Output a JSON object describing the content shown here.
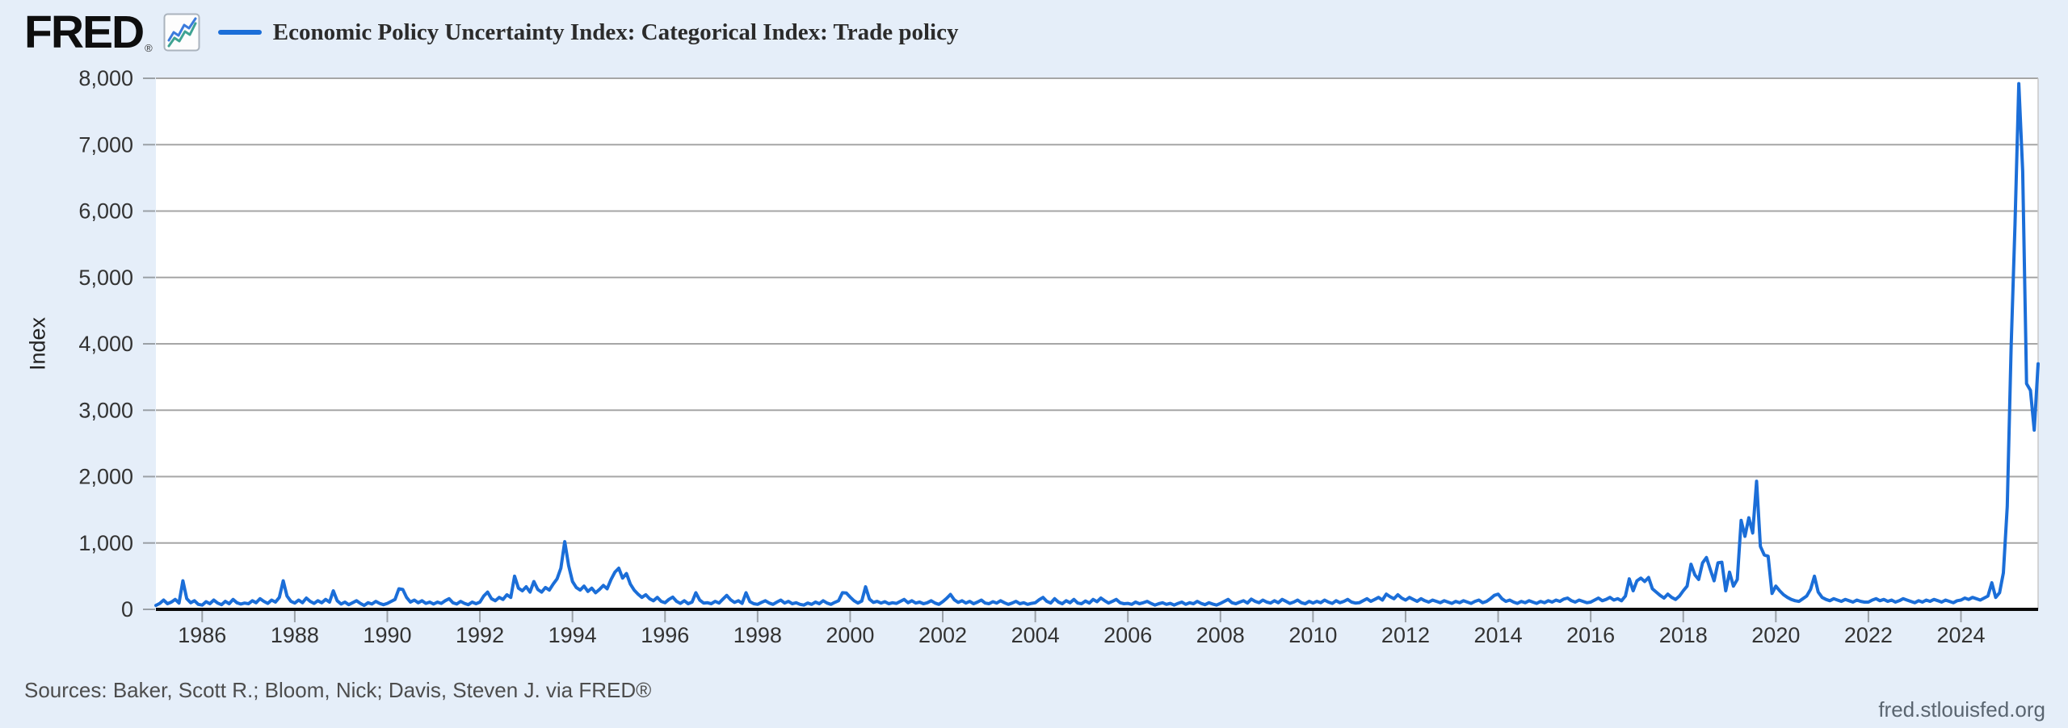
{
  "header": {
    "logo_text": "FRED",
    "logo_registered": "®",
    "legend_label": "Economic Policy Uncertainty Index: Categorical Index: Trade policy"
  },
  "footer": {
    "sources": "Sources: Baker, Scott R.; Bloom, Nick; Davis, Steven J. via FRED®",
    "watermark": "fred.stlouisfed.org"
  },
  "chart_data": {
    "type": "line",
    "title": "Economic Policy Uncertainty Index: Categorical Index: Trade policy",
    "xlabel": "",
    "ylabel": "Index",
    "ylim": [
      0,
      8000
    ],
    "grid": true,
    "legend_position": "top-left",
    "line_color": "#1b6ed8",
    "y_tick_labels": [
      "0",
      "1,000",
      "2,000",
      "3,000",
      "4,000",
      "5,000",
      "6,000",
      "7,000",
      "8,000"
    ],
    "x_tick_labels": [
      "1986",
      "1988",
      "1990",
      "1992",
      "1994",
      "1996",
      "1998",
      "2000",
      "2002",
      "2004",
      "2006",
      "2008",
      "2010",
      "2012",
      "2014",
      "2016",
      "2018",
      "2020",
      "2022",
      "2024"
    ],
    "x_start_year": 1985,
    "frequency": "monthly",
    "series": [
      {
        "name": "Economic Policy Uncertainty Index: Categorical Index: Trade policy",
        "values": [
          60,
          90,
          140,
          85,
          110,
          150,
          95,
          430,
          160,
          100,
          130,
          75,
          65,
          115,
          85,
          140,
          95,
          70,
          120,
          85,
          150,
          100,
          80,
          95,
          85,
          130,
          100,
          160,
          120,
          90,
          140,
          110,
          180,
          430,
          200,
          120,
          95,
          140,
          100,
          170,
          120,
          90,
          130,
          100,
          150,
          110,
          280,
          130,
          80,
          110,
          70,
          100,
          130,
          90,
          60,
          100,
          80,
          120,
          90,
          70,
          90,
          120,
          150,
          310,
          300,
          180,
          110,
          140,
          100,
          130,
          90,
          110,
          80,
          110,
          90,
          130,
          160,
          100,
          80,
          120,
          90,
          70,
          110,
          85,
          110,
          200,
          260,
          160,
          130,
          180,
          150,
          220,
          180,
          500,
          320,
          280,
          340,
          260,
          420,
          300,
          260,
          330,
          290,
          380,
          460,
          620,
          1020,
          660,
          420,
          330,
          290,
          350,
          270,
          320,
          250,
          300,
          360,
          310,
          450,
          560,
          620,
          470,
          540,
          380,
          290,
          230,
          180,
          220,
          160,
          130,
          180,
          120,
          100,
          150,
          185,
          120,
          90,
          130,
          85,
          110,
          250,
          140,
          95,
          100,
          85,
          120,
          95,
          155,
          210,
          145,
          105,
          130,
          90,
          250,
          115,
          85,
          75,
          105,
          130,
          95,
          75,
          110,
          140,
          95,
          120,
          85,
          100,
          75,
          65,
          95,
          75,
          110,
          85,
          130,
          95,
          75,
          105,
          130,
          250,
          245,
          185,
          130,
          95,
          125,
          340,
          155,
          105,
          120,
          95,
          115,
          85,
          100,
          90,
          120,
          150,
          100,
          130,
          95,
          110,
          85,
          100,
          130,
          95,
          75,
          115,
          165,
          225,
          145,
          105,
          130,
          95,
          120,
          85,
          110,
          140,
          95,
          85,
          115,
          95,
          130,
          100,
          75,
          95,
          120,
          85,
          100,
          75,
          90,
          100,
          145,
          180,
          120,
          95,
          160,
          110,
          85,
          130,
          100,
          150,
          95,
          85,
          125,
          95,
          150,
          115,
          170,
          130,
          95,
          120,
          150,
          100,
          85,
          90,
          75,
          110,
          85,
          100,
          120,
          90,
          65,
          85,
          100,
          75,
          90,
          65,
          90,
          110,
          75,
          100,
          85,
          120,
          90,
          70,
          100,
          80,
          65,
          90,
          120,
          150,
          100,
          85,
          110,
          130,
          95,
          155,
          120,
          100,
          140,
          110,
          95,
          130,
          100,
          150,
          120,
          90,
          110,
          140,
          100,
          85,
          120,
          95,
          120,
          100,
          140,
          110,
          90,
          130,
          100,
          120,
          150,
          110,
          95,
          100,
          130,
          160,
          120,
          150,
          180,
          140,
          230,
          190,
          160,
          220,
          170,
          140,
          180,
          150,
          120,
          160,
          130,
          110,
          140,
          120,
          100,
          130,
          110,
          90,
          120,
          100,
          130,
          110,
          90,
          120,
          140,
          100,
          120,
          160,
          210,
          230,
          160,
          120,
          140,
          110,
          90,
          120,
          100,
          130,
          110,
          90,
          120,
          100,
          130,
          110,
          140,
          120,
          155,
          170,
          130,
          110,
          140,
          120,
          100,
          110,
          140,
          170,
          130,
          150,
          180,
          140,
          160,
          130,
          200,
          460,
          280,
          430,
          470,
          420,
          480,
          310,
          260,
          210,
          170,
          230,
          180,
          150,
          200,
          280,
          350,
          680,
          520,
          450,
          700,
          780,
          600,
          430,
          700,
          710,
          280,
          560,
          350,
          450,
          1340,
          1100,
          1380,
          1150,
          1930,
          950,
          820,
          800,
          240,
          350,
          280,
          220,
          180,
          150,
          130,
          120,
          160,
          200,
          300,
          500,
          260,
          180,
          150,
          130,
          160,
          140,
          120,
          150,
          130,
          110,
          140,
          120,
          110,
          110,
          140,
          160,
          130,
          150,
          120,
          140,
          110,
          130,
          160,
          140,
          120,
          100,
          130,
          110,
          140,
          120,
          150,
          130,
          110,
          140,
          120,
          100,
          130,
          140,
          170,
          150,
          180,
          160,
          140,
          170,
          200,
          400,
          180,
          250,
          550,
          1550,
          3950,
          5800,
          7920,
          6600,
          3400,
          3300,
          2700,
          3700
        ]
      }
    ]
  }
}
